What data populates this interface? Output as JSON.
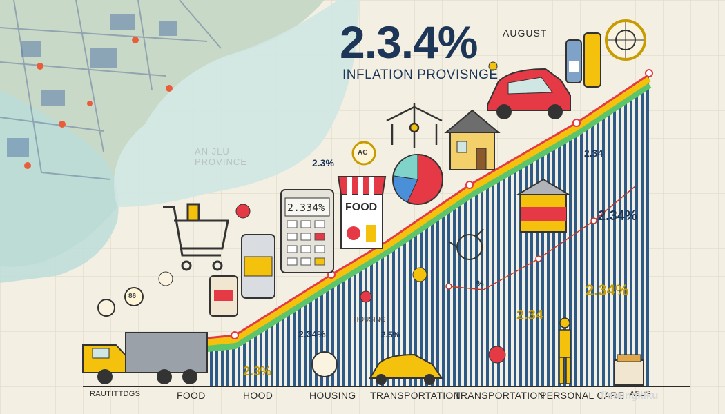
{
  "headline": "2.3.4%",
  "subhead": "INFLATION PROVISNGE",
  "month": "AUGUST",
  "ghost_map_text": [
    "AN JLU",
    "PROVINCE"
  ],
  "lcd_display": "2.334%",
  "store_sign": "FOOD",
  "badge_ac": "AC",
  "badge_86": "86",
  "floating_labels": {
    "pct_left": "2.3%",
    "pct_mid": "2.34%",
    "pct_right_top": "2.34",
    "pct_right_mid": "2.34%",
    "pct_right_big": "2.34%",
    "pct_right_low": "2.34",
    "pct_bottom_left": "2.3%",
    "pct_bottom_mid": "2.5%",
    "pct_small": "%",
    "housing_small": "HOUSING"
  },
  "categories": [
    "RAUTITTDGS",
    "FOOD",
    "HOOD",
    "HOUSING",
    "TRANSPORTATION",
    "TRANSPORTATION",
    "PERSONAL CARE",
    "ABUS"
  ],
  "watermark": "fiesungkiku",
  "colors": {
    "navy": "#1d3557",
    "red_line": "#e63946",
    "yellow": "#f4c20d",
    "green": "#5cc46a",
    "teal": "#7fd3c8",
    "water": "#b9dcd8",
    "paper": "#f3efe2"
  }
}
